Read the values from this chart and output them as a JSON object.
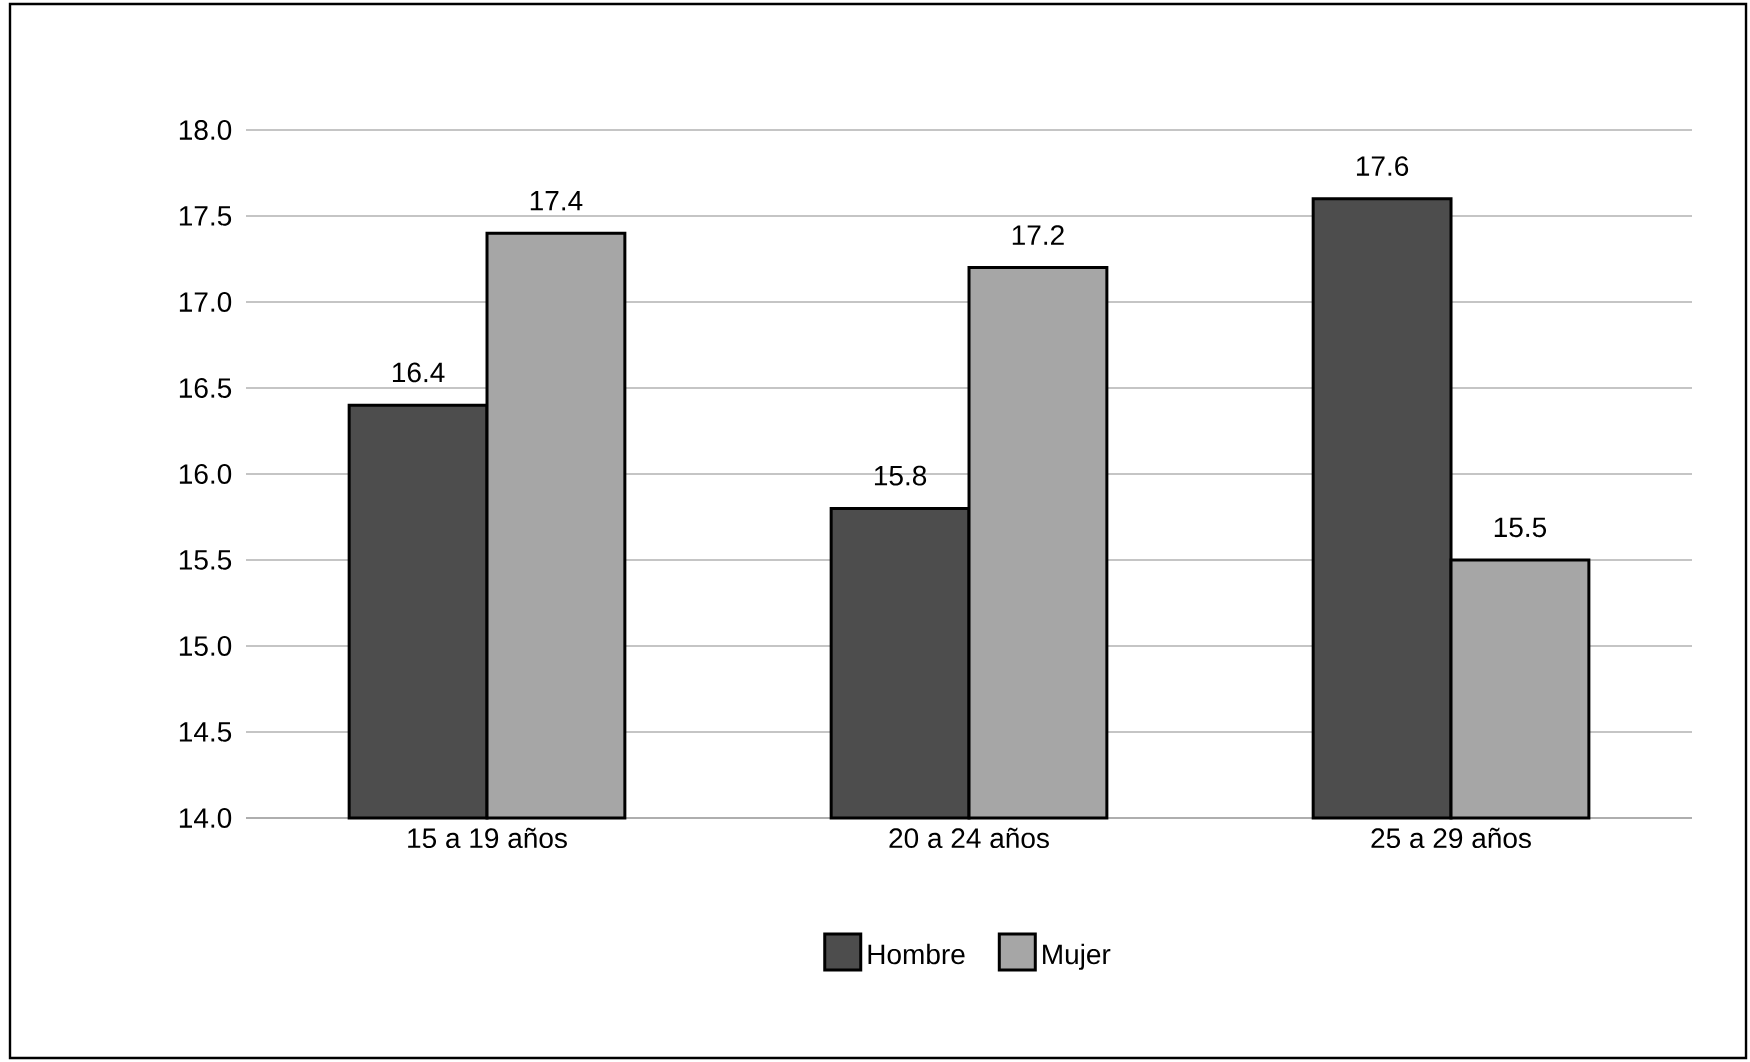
{
  "chart_data": {
    "type": "bar",
    "categories": [
      "15 a 19 años",
      "20 a 24 años",
      "25 a 29 años"
    ],
    "series": [
      {
        "name": "Hombre",
        "color": "#4d4d4d",
        "values": [
          16.4,
          15.8,
          17.6
        ]
      },
      {
        "name": "Mujer",
        "color": "#a6a6a6",
        "values": [
          17.4,
          17.2,
          15.5
        ]
      }
    ],
    "ylim": [
      14.0,
      18.0
    ],
    "yticks": [
      {
        "value": 14.0,
        "label": "14.0"
      },
      {
        "value": 14.5,
        "label": "14.5"
      },
      {
        "value": 15.0,
        "label": "15.0"
      },
      {
        "value": 15.5,
        "label": "15.5"
      },
      {
        "value": 16.0,
        "label": "16.0"
      },
      {
        "value": 16.5,
        "label": "16.5"
      },
      {
        "value": 17.0,
        "label": "17.0"
      },
      {
        "value": 17.5,
        "label": "17.5"
      },
      {
        "value": 18.0,
        "label": "18.0"
      }
    ],
    "grid": "y",
    "legend": "bottom",
    "data_labels": true
  }
}
